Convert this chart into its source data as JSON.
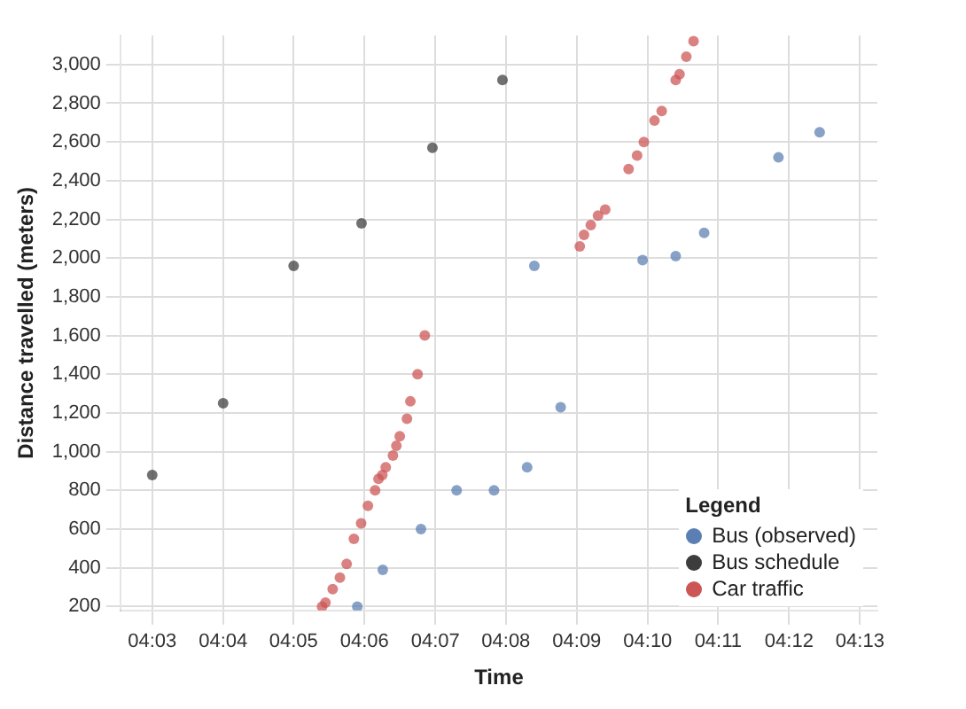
{
  "chart_data": {
    "type": "scatter",
    "xlabel": "Time",
    "ylabel": "Distance travelled (meters)",
    "legend_title": "Legend",
    "legend": "bottom right",
    "grid": true,
    "marker": "circle",
    "xlim": [
      4.0425,
      4.2208
    ],
    "ylim": [
      180,
      3150
    ],
    "xticks": [
      {
        "value": 4.05,
        "label": "04:03"
      },
      {
        "value": 4.0667,
        "label": "04:04"
      },
      {
        "value": 4.0833,
        "label": "04:05"
      },
      {
        "value": 4.1,
        "label": "04:06"
      },
      {
        "value": 4.1167,
        "label": "04:07"
      },
      {
        "value": 4.1333,
        "label": "04:08"
      },
      {
        "value": 4.15,
        "label": "04:09"
      },
      {
        "value": 4.1667,
        "label": "04:10"
      },
      {
        "value": 4.1833,
        "label": "04:11"
      },
      {
        "value": 4.2,
        "label": "04:12"
      },
      {
        "value": 4.2167,
        "label": "04:13"
      }
    ],
    "yticks": [
      {
        "value": 200,
        "label": "200"
      },
      {
        "value": 400,
        "label": "400"
      },
      {
        "value": 600,
        "label": "600"
      },
      {
        "value": 800,
        "label": "800"
      },
      {
        "value": 1000,
        "label": "1,000"
      },
      {
        "value": 1200,
        "label": "1,200"
      },
      {
        "value": 1400,
        "label": "1,400"
      },
      {
        "value": 1600,
        "label": "1,600"
      },
      {
        "value": 1800,
        "label": "1,800"
      },
      {
        "value": 2000,
        "label": "2,000"
      },
      {
        "value": 2200,
        "label": "2,200"
      },
      {
        "value": 2400,
        "label": "2,400"
      },
      {
        "value": 2600,
        "label": "2,600"
      },
      {
        "value": 2800,
        "label": "2,800"
      },
      {
        "value": 3000,
        "label": "3,000"
      }
    ],
    "series": [
      {
        "name": "Bus (observed)",
        "color": "#5b7fb3",
        "x": [
          4.0983,
          4.1043,
          4.1133,
          4.1217,
          4.1305,
          4.1383,
          4.14,
          4.1462,
          4.1655,
          4.1733,
          4.18,
          4.1975,
          4.2072
        ],
        "values": [
          200,
          390,
          600,
          800,
          800,
          920,
          1960,
          1230,
          1990,
          2010,
          2130,
          2520,
          2650
        ]
      },
      {
        "name": "Bus schedule",
        "color": "#3d3d3d",
        "x": [
          4.05,
          4.0667,
          4.0833,
          4.0993,
          4.116,
          4.1325
        ],
        "values": [
          880,
          1250,
          1960,
          2180,
          2570,
          2920
        ]
      },
      {
        "name": "Car traffic",
        "color": "#cc5555",
        "x": [
          4.09,
          4.0908,
          4.0925,
          4.0942,
          4.0958,
          4.0975,
          4.0992,
          4.1008,
          4.1025,
          4.1033,
          4.1042,
          4.105,
          4.1067,
          4.1075,
          4.1083,
          4.11,
          4.1108,
          4.1125,
          4.1142,
          4.1507,
          4.1517,
          4.1533,
          4.155,
          4.1567,
          4.1622,
          4.1642,
          4.1658,
          4.1683,
          4.17,
          4.1733,
          4.1742,
          4.1758,
          4.1775
        ],
        "values": [
          200,
          220,
          290,
          350,
          420,
          550,
          630,
          720,
          800,
          860,
          880,
          920,
          980,
          1030,
          1080,
          1170,
          1260,
          1400,
          1600,
          2060,
          2120,
          2170,
          2220,
          2250,
          2460,
          2530,
          2600,
          2710,
          2760,
          2920,
          2950,
          3040,
          3120
        ]
      }
    ]
  }
}
